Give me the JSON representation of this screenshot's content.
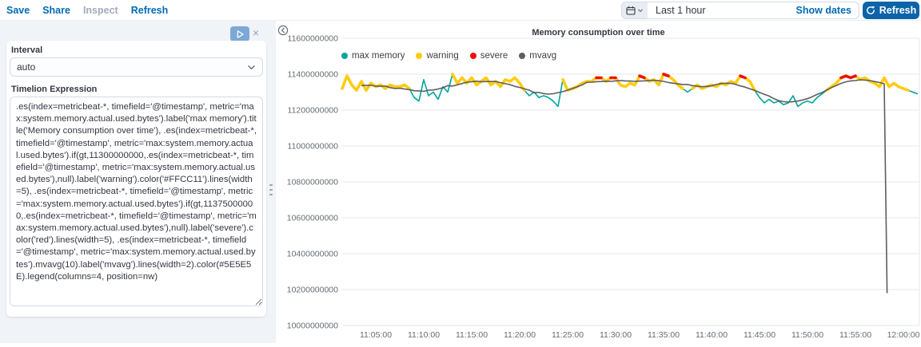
{
  "topbar": {
    "menu": [
      {
        "label": "Save",
        "enabled": true
      },
      {
        "label": "Share",
        "enabled": true
      },
      {
        "label": "Inspect",
        "enabled": false
      },
      {
        "label": "Refresh",
        "enabled": true
      }
    ],
    "time_picker": {
      "value": "Last 1 hour",
      "show_dates_label": "Show dates"
    },
    "refresh_button_label": "Refresh"
  },
  "sidebar": {
    "interval_label": "Interval",
    "interval_value": "auto",
    "expression_label": "Timelion Expression",
    "expression": ".es(index=metricbeat-*, timefield='@timestamp', metric='max:system.memory.actual.used.bytes').label('max memory').title('Memory consumption over time'), .es(index=metricbeat-*, timefield='@timestamp', metric='max:system.memory.actual.used.bytes').if(gt,11300000000,.es(index=metricbeat-*, timefield='@timestamp', metric='max:system.memory.actual.used.bytes'),null).label('warning').color('#FFCC11').lines(width=5), .es(index=metricbeat-*, timefield='@timestamp', metric='max:system.memory.actual.used.bytes').if(gt,11375000000,.es(index=metricbeat-*, timefield='@timestamp', metric='max:system.memory.actual.used.bytes'),null).label('severe').color('red').lines(width=5), .es(index=metricbeat-*, timefield='@timestamp', metric='max:system.memory.actual.used.bytes').mvavg(10).label('mvavg').lines(width=2).color(#5E5E5E).legend(columns=4, position=nw)"
  },
  "chart_data": {
    "type": "line",
    "title": "Memory consumption over time",
    "legend": [
      {
        "label": "max memory",
        "color": "#00A69B"
      },
      {
        "label": "warning",
        "color": "#FFCC11"
      },
      {
        "label": "severe",
        "color": "#F00F0F"
      },
      {
        "label": "mvavg",
        "color": "#5E5E5E"
      }
    ],
    "legend_position": "nw",
    "grid": true,
    "y_ticks": [
      "11600000000",
      "11400000000",
      "11200000000",
      "11000000000",
      "10800000000",
      "10600000000",
      "10400000000",
      "10200000000",
      "10000000000"
    ],
    "ylim": [
      10000000000,
      11600000000
    ],
    "x_ticks": [
      "11:05:00",
      "11:10:00",
      "11:15:00",
      "11:20:00",
      "11:25:00",
      "11:30:00",
      "11:35:00",
      "11:40:00",
      "11:45:00",
      "11:50:00",
      "11:55:00",
      "12:00:00"
    ],
    "x_tick_start_min": 5,
    "x_tick_step_min": 5,
    "thresholds": {
      "warning": 11.3,
      "severe": 11.375
    },
    "series": {
      "name": "max memory",
      "start_min": 1.5,
      "step_min": 0.5,
      "values_e9": [
        11.32,
        11.39,
        11.34,
        11.31,
        11.36,
        11.31,
        11.35,
        11.33,
        11.34,
        11.32,
        11.34,
        11.33,
        11.33,
        11.34,
        11.32,
        11.27,
        11.25,
        11.37,
        11.28,
        11.3,
        11.26,
        11.33,
        11.3,
        11.4,
        11.35,
        11.38,
        11.35,
        11.38,
        11.34,
        11.36,
        11.38,
        11.34,
        11.36,
        11.33,
        11.37,
        11.36,
        11.38,
        11.35,
        11.31,
        11.28,
        11.3,
        11.27,
        11.28,
        11.27,
        11.25,
        11.22,
        11.37,
        11.31,
        11.32,
        11.33,
        11.35,
        11.36,
        11.36,
        11.38,
        11.38,
        11.36,
        11.38,
        11.38,
        11.34,
        11.33,
        11.35,
        11.34,
        11.39,
        11.38,
        11.36,
        11.37,
        11.34,
        11.4,
        11.39,
        11.37,
        11.34,
        11.32,
        11.3,
        11.32,
        11.34,
        11.32,
        11.33,
        11.34,
        11.33,
        11.35,
        11.34,
        11.36,
        11.35,
        11.39,
        11.38,
        11.36,
        11.31,
        11.27,
        11.24,
        11.26,
        11.24,
        11.25,
        11.23,
        11.24,
        11.28,
        11.22,
        11.24,
        11.25,
        11.24,
        11.27,
        11.29,
        11.31,
        11.33,
        11.35,
        11.38,
        11.39,
        11.38,
        11.39,
        11.37,
        11.38,
        11.36,
        11.35,
        11.33,
        11.38,
        11.33,
        11.35,
        11.33,
        11.32,
        11.31,
        11.3,
        11.29
      ]
    },
    "mvavg": {
      "window": 10,
      "start_offset_points": 4,
      "end_min": 58.0,
      "drop": {
        "min": 58.3,
        "value_e9": 10.18
      }
    }
  }
}
